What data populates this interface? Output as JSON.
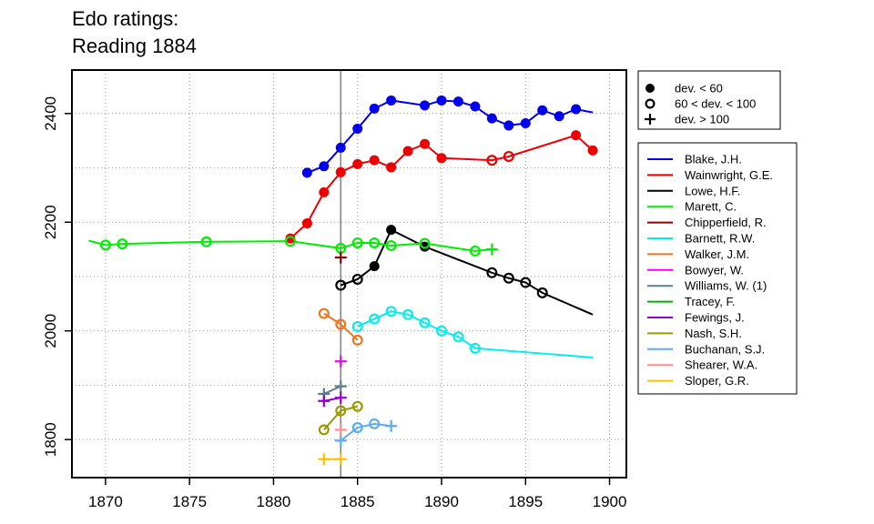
{
  "chart_data": {
    "type": "line",
    "title": [
      "Edo ratings:",
      "Reading 1884"
    ],
    "xlabel": "",
    "ylabel": "",
    "xlim": [
      1868,
      1901
    ],
    "ylim": [
      1730,
      2480
    ],
    "x_ticks": [
      1870,
      1875,
      1880,
      1885,
      1890,
      1895,
      1900
    ],
    "y_ticks": [
      1800,
      2000,
      2200,
      2400
    ],
    "grid": true,
    "reference_x": 1884,
    "marker_legend": {
      "placement": "top-right",
      "items": [
        {
          "marker": "dot",
          "label": "dev. < 60"
        },
        {
          "marker": "circle",
          "label": "60 < dev. < 100"
        },
        {
          "marker": "plus",
          "label": "dev. > 100"
        }
      ]
    },
    "series": [
      {
        "name": "Blake, J.H.",
        "color": "#0000EE",
        "lines": [
          [
            [
              1882,
              2291
            ],
            [
              1883,
              2303
            ],
            [
              1884,
              2337
            ],
            [
              1885,
              2372
            ],
            [
              1886,
              2409
            ],
            [
              1887,
              2424
            ],
            [
              1889,
              2415
            ],
            [
              1890,
              2424
            ],
            [
              1891,
              2422
            ],
            [
              1892,
              2413
            ],
            [
              1893,
              2391
            ],
            [
              1894,
              2378
            ],
            [
              1895,
              2382
            ],
            [
              1896,
              2406
            ],
            [
              1897,
              2395
            ],
            [
              1898,
              2408
            ],
            [
              1899,
              2402
            ]
          ]
        ],
        "points": [
          [
            1882,
            2291,
            "dot"
          ],
          [
            1883,
            2303,
            "dot"
          ],
          [
            1884,
            2337,
            "dot"
          ],
          [
            1885,
            2372,
            "dot"
          ],
          [
            1886,
            2409,
            "dot"
          ],
          [
            1887,
            2424,
            "dot"
          ],
          [
            1889,
            2415,
            "dot"
          ],
          [
            1890,
            2424,
            "dot"
          ],
          [
            1891,
            2422,
            "dot"
          ],
          [
            1892,
            2413,
            "dot"
          ],
          [
            1893,
            2391,
            "dot"
          ],
          [
            1894,
            2378,
            "dot"
          ],
          [
            1895,
            2382,
            "dot"
          ],
          [
            1896,
            2406,
            "dot"
          ],
          [
            1897,
            2395,
            "dot"
          ],
          [
            1898,
            2408,
            "dot"
          ]
        ]
      },
      {
        "name": "Wainwright, G.E.",
        "color": "#EE0000",
        "lines": [
          [
            [
              1881,
              2170
            ],
            [
              1882,
              2198
            ],
            [
              1883,
              2255
            ],
            [
              1884,
              2292
            ],
            [
              1885,
              2307
            ],
            [
              1886,
              2314
            ],
            [
              1887,
              2301
            ],
            [
              1888,
              2331
            ],
            [
              1889,
              2344
            ],
            [
              1890,
              2318
            ],
            [
              1893,
              2314
            ],
            [
              1894,
              2321
            ],
            [
              1898,
              2360
            ],
            [
              1899,
              2332
            ]
          ]
        ],
        "points": [
          [
            1881,
            2170,
            "dot"
          ],
          [
            1882,
            2198,
            "dot"
          ],
          [
            1883,
            2255,
            "dot"
          ],
          [
            1884,
            2292,
            "dot"
          ],
          [
            1885,
            2307,
            "dot"
          ],
          [
            1886,
            2314,
            "dot"
          ],
          [
            1887,
            2301,
            "dot"
          ],
          [
            1888,
            2331,
            "dot"
          ],
          [
            1889,
            2344,
            "dot"
          ],
          [
            1890,
            2318,
            "dot"
          ],
          [
            1893,
            2314,
            "circle"
          ],
          [
            1894,
            2321,
            "circle"
          ],
          [
            1898,
            2360,
            "dot"
          ],
          [
            1899,
            2332,
            "dot"
          ]
        ]
      },
      {
        "name": "Lowe, H.F.",
        "color": "#000000",
        "lines": [
          [
            [
              1884,
              2084
            ],
            [
              1885,
              2095
            ],
            [
              1886,
              2119
            ],
            [
              1887,
              2186
            ],
            [
              1889,
              2155
            ],
            [
              1893,
              2107
            ],
            [
              1894,
              2097
            ],
            [
              1895,
              2089
            ],
            [
              1896,
              2070
            ],
            [
              1899,
              2030
            ]
          ]
        ],
        "points": [
          [
            1884,
            2084,
            "circle"
          ],
          [
            1885,
            2095,
            "circle"
          ],
          [
            1886,
            2119,
            "dot"
          ],
          [
            1887,
            2186,
            "dot"
          ],
          [
            1889,
            2155,
            "dot"
          ],
          [
            1893,
            2107,
            "circle"
          ],
          [
            1894,
            2097,
            "circle"
          ],
          [
            1895,
            2089,
            "circle"
          ],
          [
            1896,
            2070,
            "circle"
          ]
        ]
      },
      {
        "name": "Marett, C.",
        "color": "#00EE00",
        "lines": [
          [
            [
              1869,
              2166
            ],
            [
              1870,
              2158
            ],
            [
              1871,
              2160
            ],
            [
              1876,
              2164
            ],
            [
              1881,
              2165
            ],
            [
              1884,
              2152
            ],
            [
              1885,
              2162
            ],
            [
              1886,
              2162
            ],
            [
              1887,
              2157
            ],
            [
              1889,
              2161
            ],
            [
              1892,
              2147
            ],
            [
              1893,
              2150
            ]
          ]
        ],
        "points": [
          [
            1870,
            2158,
            "circle"
          ],
          [
            1871,
            2160,
            "circle"
          ],
          [
            1876,
            2164,
            "circle"
          ],
          [
            1881,
            2165,
            "circle"
          ],
          [
            1884,
            2152,
            "circle"
          ],
          [
            1885,
            2162,
            "circle"
          ],
          [
            1886,
            2162,
            "circle"
          ],
          [
            1887,
            2157,
            "circle"
          ],
          [
            1889,
            2161,
            "circle"
          ],
          [
            1892,
            2147,
            "circle"
          ],
          [
            1893,
            2150,
            "plus"
          ]
        ]
      },
      {
        "name": "Chipperfield, R.",
        "color": "#8B0000",
        "lines": [],
        "points": [
          [
            1884,
            2135,
            "plus"
          ]
        ]
      },
      {
        "name": "Barnett, R.W.",
        "color": "#00EEEE",
        "lines": [
          [
            [
              1885,
              2008
            ],
            [
              1886,
              2022
            ],
            [
              1887,
              2036
            ],
            [
              1888,
              2030
            ],
            [
              1889,
              2015
            ],
            [
              1890,
              2000
            ],
            [
              1891,
              1989
            ],
            [
              1892,
              1968
            ],
            [
              1899,
              1951
            ]
          ]
        ],
        "points": [
          [
            1885,
            2008,
            "circle"
          ],
          [
            1886,
            2022,
            "circle"
          ],
          [
            1887,
            2036,
            "circle"
          ],
          [
            1888,
            2030,
            "circle"
          ],
          [
            1889,
            2015,
            "circle"
          ],
          [
            1890,
            2000,
            "circle"
          ],
          [
            1891,
            1989,
            "circle"
          ],
          [
            1892,
            1968,
            "circle"
          ]
        ]
      },
      {
        "name": "Walker, J.M.",
        "color": "#EE7621",
        "lines": [
          [
            [
              1883,
              2032
            ],
            [
              1884,
              2012
            ],
            [
              1885,
              1983
            ]
          ]
        ],
        "points": [
          [
            1883,
            2032,
            "circle"
          ],
          [
            1884,
            2012,
            "circle"
          ],
          [
            1885,
            1983,
            "circle"
          ]
        ]
      },
      {
        "name": "Bowyer, W.",
        "color": "#EE00EE",
        "lines": [],
        "points": [
          [
            1884,
            1944,
            "plus"
          ]
        ]
      },
      {
        "name": "Williams, W. (1)",
        "color": "#607B8B",
        "lines": [
          [
            [
              1883,
              1884
            ],
            [
              1884,
              1898
            ]
          ]
        ],
        "points": [
          [
            1883,
            1884,
            "plus"
          ],
          [
            1884,
            1898,
            "plus"
          ]
        ]
      },
      {
        "name": "Tracey, F.",
        "color": "#00B000",
        "lines": [],
        "points": []
      },
      {
        "name": "Fewings, J.",
        "color": "#9400D3",
        "lines": [
          [
            [
              1883,
              1871
            ],
            [
              1884,
              1877
            ]
          ]
        ],
        "points": [
          [
            1883,
            1871,
            "plus"
          ],
          [
            1884,
            1877,
            "plus"
          ]
        ]
      },
      {
        "name": "Nash, S.H.",
        "color": "#9B9B00",
        "lines": [
          [
            [
              1883,
              1818
            ],
            [
              1884,
              1853
            ],
            [
              1885,
              1861
            ]
          ]
        ],
        "points": [
          [
            1883,
            1818,
            "circle"
          ],
          [
            1884,
            1853,
            "circle"
          ],
          [
            1885,
            1861,
            "circle"
          ]
        ]
      },
      {
        "name": "Buchanan, S.J.",
        "color": "#5CACEE",
        "lines": [
          [
            [
              1884,
              1798
            ],
            [
              1885,
              1822
            ],
            [
              1886,
              1829
            ],
            [
              1887,
              1825
            ]
          ]
        ],
        "points": [
          [
            1884,
            1798,
            "plus"
          ],
          [
            1885,
            1822,
            "circle"
          ],
          [
            1886,
            1829,
            "circle"
          ],
          [
            1887,
            1825,
            "plus"
          ]
        ]
      },
      {
        "name": "Shearer, W.A.",
        "color": "#FF8C8C",
        "lines": [],
        "points": [
          [
            1884,
            1818,
            "plus"
          ]
        ]
      },
      {
        "name": "Sloper, G.R.",
        "color": "#FFC000",
        "lines": [
          [
            [
              1883,
              1764
            ],
            [
              1884,
              1764
            ]
          ]
        ],
        "points": [
          [
            1883,
            1764,
            "plus"
          ],
          [
            1884,
            1764,
            "plus"
          ]
        ]
      }
    ]
  }
}
